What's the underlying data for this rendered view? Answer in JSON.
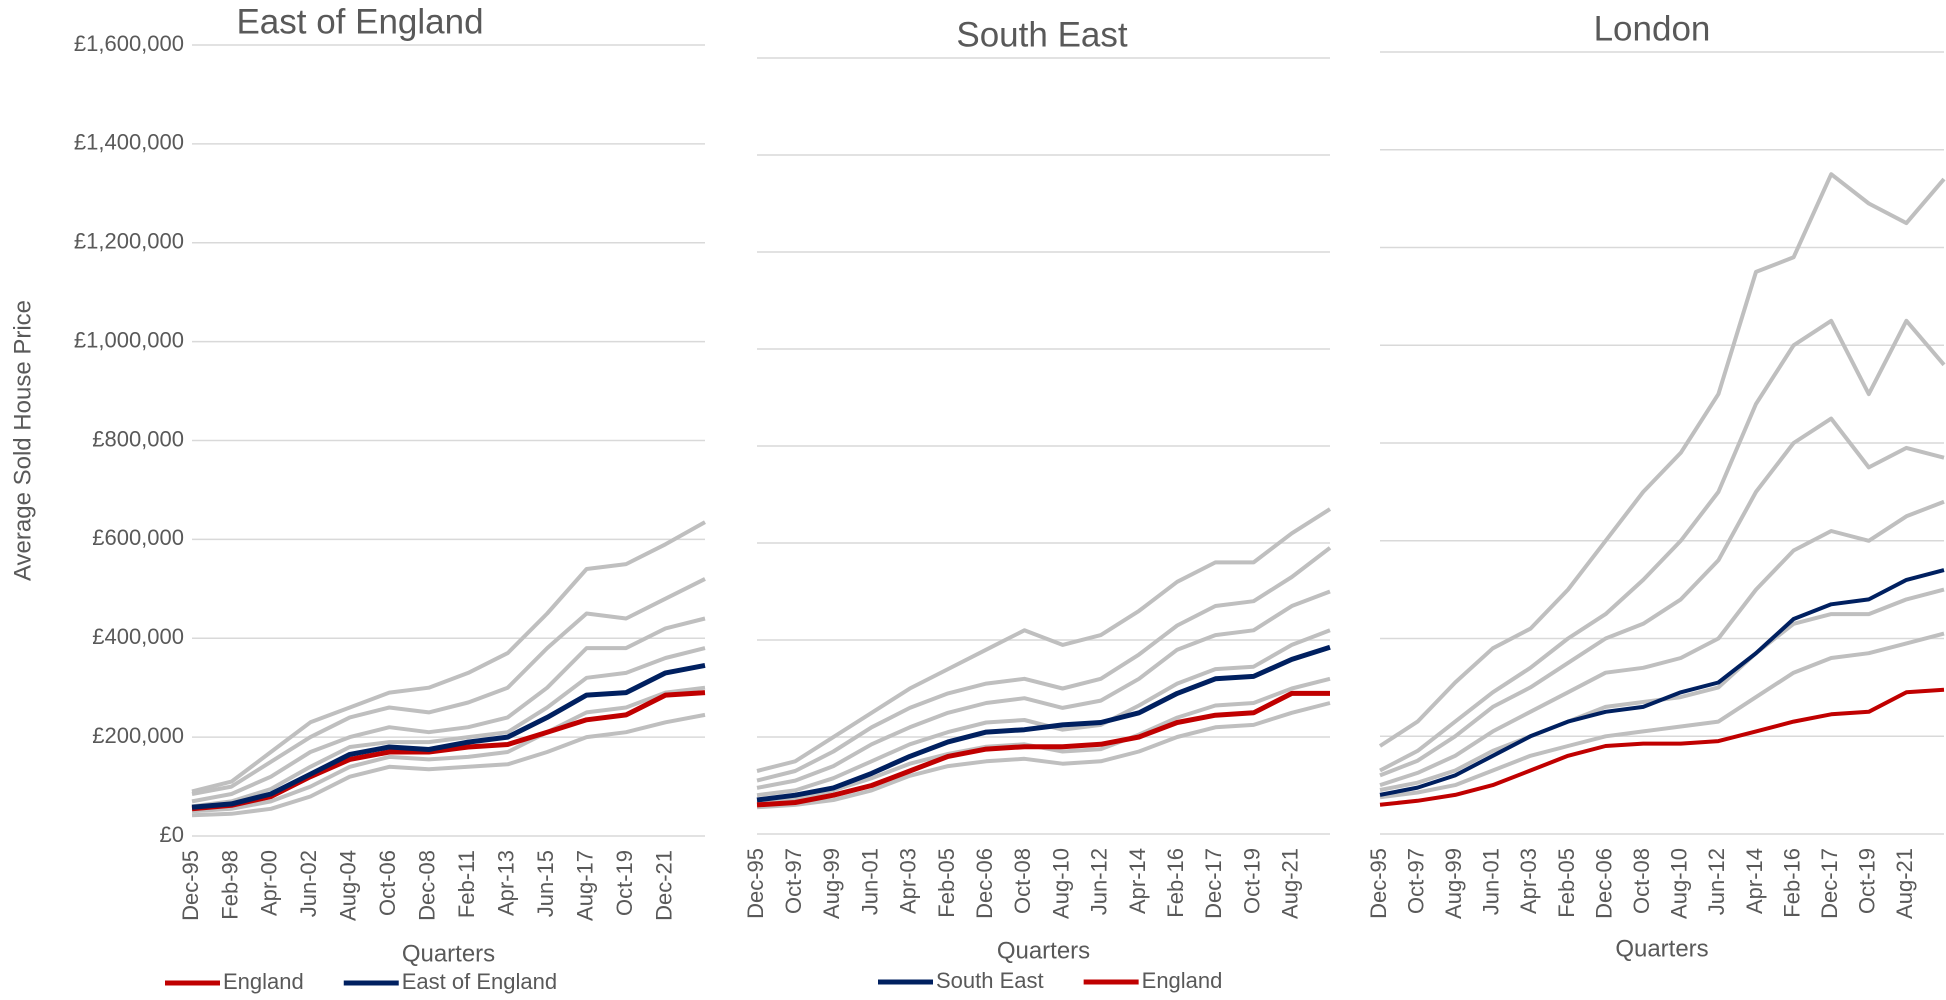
{
  "chart_data": [
    {
      "type": "line",
      "title": "East of England",
      "x_label": "Quarters",
      "y_label": "Average Sold House Price",
      "categories": [
        "Dec-95",
        "Feb-98",
        "Apr-00",
        "Jun-02",
        "Aug-04",
        "Oct-06",
        "Dec-08",
        "Feb-11",
        "Apr-13",
        "Jun-15",
        "Aug-17",
        "Oct-19",
        "Dec-21",
        null
      ],
      "ylim": [
        0,
        1600000
      ],
      "yticks": [
        {
          "value": 0,
          "label": "£0"
        },
        {
          "value": 200000,
          "label": "£200,000"
        },
        {
          "value": 400000,
          "label": "£400,000"
        },
        {
          "value": 600000,
          "label": "£600,000"
        },
        {
          "value": 800000,
          "label": "£800,000"
        },
        {
          "value": 1000000,
          "label": "£1,000,000"
        },
        {
          "value": 1200000,
          "label": "£1,200,000"
        },
        {
          "value": 1400000,
          "label": "£1,400,000"
        },
        {
          "value": 1600000,
          "label": "£1,600,000"
        }
      ],
      "grid": true,
      "series": [
        {
          "color": "#bfbfbf",
          "values": [
            90000,
            110000,
            170000,
            230000,
            260000,
            290000,
            300000,
            330000,
            370000,
            450000,
            540000,
            550000,
            590000,
            635000
          ]
        },
        {
          "color": "#bfbfbf",
          "values": [
            85000,
            100000,
            150000,
            200000,
            240000,
            260000,
            250000,
            270000,
            300000,
            380000,
            450000,
            440000,
            480000,
            520000
          ]
        },
        {
          "color": "#bfbfbf",
          "values": [
            70000,
            85000,
            120000,
            170000,
            200000,
            220000,
            210000,
            220000,
            240000,
            300000,
            380000,
            380000,
            420000,
            440000
          ]
        },
        {
          "color": "#bfbfbf",
          "values": [
            60000,
            70000,
            95000,
            140000,
            180000,
            190000,
            190000,
            200000,
            210000,
            260000,
            320000,
            330000,
            360000,
            380000
          ]
        },
        {
          "color": "#bfbfbf",
          "values": [
            50000,
            55000,
            70000,
            100000,
            140000,
            160000,
            155000,
            160000,
            170000,
            210000,
            250000,
            260000,
            290000,
            300000
          ]
        },
        {
          "color": "#bfbfbf",
          "values": [
            42000,
            45000,
            55000,
            80000,
            120000,
            140000,
            135000,
            140000,
            145000,
            170000,
            200000,
            210000,
            230000,
            245000
          ]
        },
        {
          "name": "England",
          "color": "#c00000",
          "values": [
            55000,
            62000,
            80000,
            120000,
            155000,
            170000,
            170000,
            180000,
            185000,
            210000,
            235000,
            245000,
            285000,
            290000
          ]
        },
        {
          "name": "East of England",
          "color": "#002060",
          "values": [
            58000,
            65000,
            85000,
            125000,
            165000,
            180000,
            175000,
            190000,
            200000,
            240000,
            285000,
            290000,
            330000,
            345000
          ]
        }
      ]
    },
    {
      "type": "line",
      "title": "South East",
      "x_label": "Quarters",
      "categories": [
        "Dec-95",
        "Oct-97",
        "Aug-99",
        "Jun-01",
        "Apr-03",
        "Feb-05",
        "Dec-06",
        "Oct-08",
        "Aug-10",
        "Jun-12",
        "Apr-14",
        "Feb-16",
        "Dec-17",
        "Oct-19",
        "Aug-21",
        null
      ],
      "ylim": [
        0,
        1600000
      ],
      "yticks": [
        0,
        200000,
        400000,
        600000,
        800000,
        1000000,
        1200000,
        1400000,
        1600000
      ],
      "grid": true,
      "series": [
        {
          "color": "#bfbfbf",
          "values": [
            130000,
            150000,
            200000,
            250000,
            300000,
            340000,
            380000,
            420000,
            390000,
            410000,
            460000,
            520000,
            560000,
            560000,
            620000,
            670000
          ]
        },
        {
          "color": "#bfbfbf",
          "values": [
            110000,
            130000,
            170000,
            220000,
            260000,
            290000,
            310000,
            320000,
            300000,
            320000,
            370000,
            430000,
            470000,
            480000,
            530000,
            590000
          ]
        },
        {
          "color": "#bfbfbf",
          "values": [
            95000,
            110000,
            140000,
            185000,
            220000,
            250000,
            270000,
            280000,
            260000,
            275000,
            320000,
            380000,
            410000,
            420000,
            470000,
            500000
          ]
        },
        {
          "color": "#bfbfbf",
          "values": [
            80000,
            90000,
            115000,
            150000,
            185000,
            210000,
            230000,
            235000,
            215000,
            225000,
            265000,
            310000,
            340000,
            345000,
            390000,
            420000
          ]
        },
        {
          "color": "#bfbfbf",
          "values": [
            65000,
            72000,
            90000,
            115000,
            145000,
            165000,
            180000,
            185000,
            170000,
            175000,
            205000,
            240000,
            265000,
            270000,
            300000,
            320000
          ]
        },
        {
          "color": "#bfbfbf",
          "values": [
            55000,
            60000,
            70000,
            90000,
            120000,
            140000,
            150000,
            155000,
            145000,
            150000,
            170000,
            200000,
            220000,
            225000,
            250000,
            270000
          ]
        },
        {
          "name": "South East",
          "color": "#002060",
          "values": [
            70000,
            80000,
            95000,
            125000,
            160000,
            190000,
            210000,
            215000,
            225000,
            230000,
            250000,
            290000,
            320000,
            325000,
            360000,
            385000
          ]
        },
        {
          "name": "England",
          "color": "#c00000",
          "values": [
            60000,
            65000,
            80000,
            100000,
            130000,
            160000,
            175000,
            180000,
            180000,
            185000,
            200000,
            230000,
            245000,
            250000,
            290000,
            290000
          ]
        }
      ]
    },
    {
      "type": "line",
      "title": "London",
      "x_label": "Quarters",
      "categories": [
        "Dec-95",
        "Oct-97",
        "Aug-99",
        "Jun-01",
        "Apr-03",
        "Feb-05",
        "Dec-06",
        "Oct-08",
        "Aug-10",
        "Jun-12",
        "Apr-14",
        "Feb-16",
        "Dec-17",
        "Oct-19",
        "Aug-21",
        null
      ],
      "ylim": [
        0,
        1600000
      ],
      "yticks": [
        0,
        200000,
        400000,
        600000,
        800000,
        1000000,
        1200000,
        1400000,
        1600000
      ],
      "grid": true,
      "series": [
        {
          "color": "#bfbfbf",
          "values": [
            180000,
            230000,
            310000,
            380000,
            420000,
            500000,
            600000,
            700000,
            780000,
            900000,
            1150000,
            1180000,
            1350000,
            1290000,
            1250000,
            1340000
          ]
        },
        {
          "color": "#bfbfbf",
          "values": [
            130000,
            170000,
            230000,
            290000,
            340000,
            400000,
            450000,
            520000,
            600000,
            700000,
            880000,
            1000000,
            1050000,
            900000,
            1050000,
            960000
          ]
        },
        {
          "color": "#bfbfbf",
          "values": [
            120000,
            150000,
            200000,
            260000,
            300000,
            350000,
            400000,
            430000,
            480000,
            560000,
            700000,
            800000,
            850000,
            750000,
            790000,
            770000
          ]
        },
        {
          "color": "#bfbfbf",
          "values": [
            100000,
            125000,
            160000,
            210000,
            250000,
            290000,
            330000,
            340000,
            360000,
            400000,
            500000,
            580000,
            620000,
            600000,
            650000,
            680000
          ]
        },
        {
          "color": "#bfbfbf",
          "values": [
            90000,
            105000,
            130000,
            170000,
            200000,
            230000,
            260000,
            270000,
            280000,
            300000,
            370000,
            430000,
            450000,
            450000,
            480000,
            500000
          ]
        },
        {
          "color": "#bfbfbf",
          "values": [
            75000,
            85000,
            100000,
            130000,
            160000,
            180000,
            200000,
            210000,
            220000,
            230000,
            280000,
            330000,
            360000,
            370000,
            390000,
            410000
          ]
        },
        {
          "color": "#c00000",
          "values": [
            60000,
            68000,
            80000,
            100000,
            130000,
            160000,
            180000,
            185000,
            185000,
            190000,
            210000,
            230000,
            245000,
            250000,
            290000,
            295000
          ]
        },
        {
          "color": "#002060",
          "values": [
            80000,
            95000,
            120000,
            160000,
            200000,
            230000,
            250000,
            260000,
            290000,
            310000,
            370000,
            440000,
            470000,
            480000,
            520000,
            540000
          ]
        }
      ]
    }
  ]
}
